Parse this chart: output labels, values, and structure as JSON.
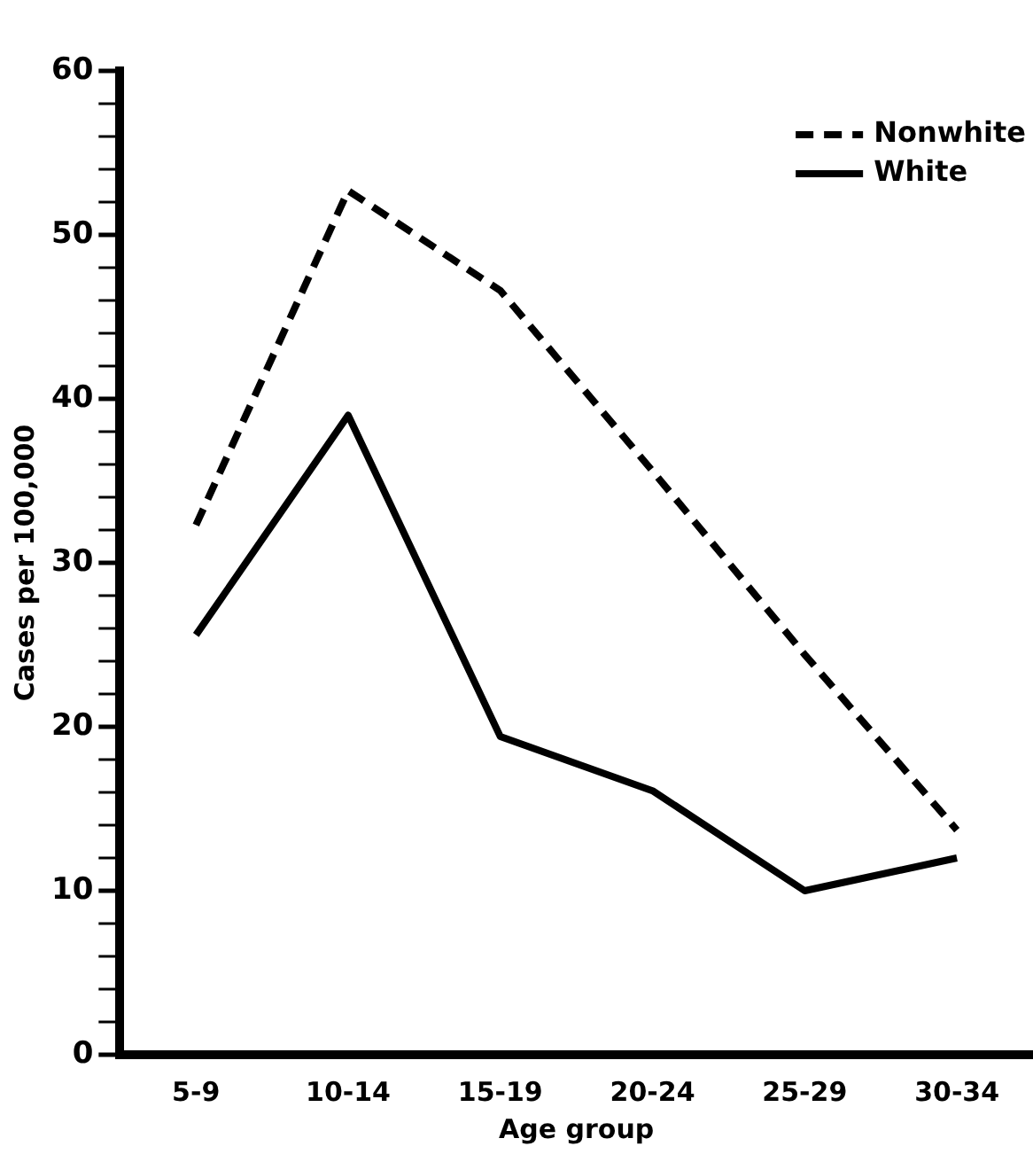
{
  "chart_data": {
    "type": "line",
    "xlabel": "Age group",
    "ylabel": "Cases per 100,000",
    "categories": [
      "5-9",
      "10-14",
      "15-19",
      "20-24",
      "25-29",
      "30-34"
    ],
    "series": [
      {
        "name": "Nonwhite",
        "color": "#000000",
        "line_style": "dashed",
        "values": [
          32.3,
          52.7,
          46.6,
          35.6,
          24.4,
          13.7
        ]
      },
      {
        "name": "White",
        "color": "#000000",
        "line_style": "solid",
        "values": [
          25.6,
          39,
          19.4,
          16.1,
          10.0,
          12.0
        ]
      }
    ],
    "ylim": [
      0,
      60
    ],
    "yticks": [
      0,
      {
        "value": 2,
        "label": null
      },
      {
        "value": 4,
        "label": null
      },
      {
        "value": 6,
        "label": null
      },
      {
        "value": 8,
        "label": null
      },
      10,
      {
        "value": 12,
        "label": null
      },
      {
        "value": 14,
        "label": null
      },
      {
        "value": 16,
        "label": null
      },
      {
        "value": 18,
        "label": null
      },
      20,
      {
        "value": 22,
        "label": null
      },
      {
        "value": 24,
        "label": null
      },
      {
        "value": 26,
        "label": null
      },
      {
        "value": 28,
        "label": null
      },
      30,
      {
        "value": 32,
        "label": null
      },
      {
        "value": 34,
        "label": null
      },
      {
        "value": 36,
        "label": null
      },
      {
        "value": 38,
        "label": null
      },
      40,
      {
        "value": 42,
        "label": null
      },
      {
        "value": 44,
        "label": null
      },
      {
        "value": 46,
        "label": null
      },
      {
        "value": 48,
        "label": null
      },
      50,
      {
        "value": 52,
        "label": null
      },
      {
        "value": 54,
        "label": null
      },
      {
        "value": 56,
        "label": null
      },
      {
        "value": 58,
        "label": null
      },
      60
    ],
    "grid": false,
    "legend": "top right",
    "marker": "none"
  }
}
